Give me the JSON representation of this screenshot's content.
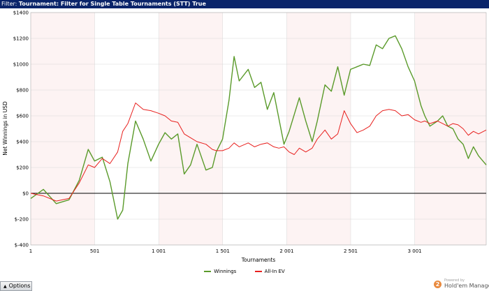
{
  "header": {
    "label": "Filter:",
    "value": "Tournament: Filter for Single Table Tournaments (STT) True"
  },
  "chart_data": {
    "type": "line",
    "xlabel": "Tournaments",
    "ylabel": "Net Winnings in USD",
    "xlim": [
      1,
      3560
    ],
    "ylim": [
      -400,
      1400
    ],
    "x_ticks": [
      1,
      501,
      1001,
      1501,
      2001,
      2501,
      3001
    ],
    "x_tick_labels": [
      "1",
      "501",
      "1 001",
      "1 501",
      "2 001",
      "2 501",
      "3 001"
    ],
    "y_ticks": [
      -400,
      -200,
      0,
      200,
      400,
      600,
      800,
      1000,
      1200,
      1400
    ],
    "y_tick_labels": [
      "$-400",
      "$-200",
      "$0",
      "$200",
      "$400",
      "$600",
      "$800",
      "$1000",
      "$1200",
      "$1400"
    ],
    "legend_position": "bottom-center",
    "series": [
      {
        "name": "Winnings",
        "color": "#5a9a2a",
        "x": [
          1,
          100,
          200,
          300,
          380,
          450,
          500,
          560,
          620,
          680,
          720,
          760,
          820,
          880,
          940,
          1000,
          1050,
          1100,
          1150,
          1200,
          1250,
          1300,
          1370,
          1420,
          1450,
          1500,
          1550,
          1590,
          1630,
          1700,
          1750,
          1800,
          1850,
          1900,
          1940,
          1980,
          2020,
          2060,
          2100,
          2150,
          2200,
          2240,
          2300,
          2350,
          2400,
          2450,
          2500,
          2550,
          2600,
          2650,
          2700,
          2750,
          2800,
          2850,
          2900,
          2950,
          3000,
          3050,
          3080,
          3120,
          3180,
          3220,
          3260,
          3300,
          3340,
          3380,
          3420,
          3460,
          3500,
          3560
        ],
        "y": [
          -40,
          30,
          -80,
          -50,
          100,
          340,
          250,
          280,
          90,
          -200,
          -130,
          230,
          560,
          420,
          250,
          380,
          470,
          420,
          460,
          150,
          220,
          380,
          180,
          200,
          320,
          420,
          720,
          1060,
          870,
          960,
          820,
          860,
          650,
          780,
          580,
          380,
          480,
          610,
          740,
          560,
          400,
          560,
          840,
          790,
          980,
          760,
          960,
          980,
          1000,
          990,
          1150,
          1120,
          1200,
          1220,
          1120,
          980,
          870,
          680,
          600,
          520,
          560,
          600,
          520,
          500,
          420,
          380,
          270,
          360,
          290,
          220
        ]
      },
      {
        "name": "All-In EV",
        "color": "#e8201e",
        "x": [
          1,
          100,
          200,
          300,
          380,
          450,
          500,
          560,
          620,
          680,
          720,
          760,
          820,
          880,
          940,
          1000,
          1050,
          1100,
          1150,
          1200,
          1250,
          1300,
          1370,
          1420,
          1450,
          1500,
          1550,
          1590,
          1630,
          1700,
          1750,
          1800,
          1850,
          1900,
          1940,
          1980,
          2020,
          2060,
          2100,
          2150,
          2200,
          2240,
          2300,
          2350,
          2400,
          2450,
          2500,
          2550,
          2600,
          2650,
          2700,
          2750,
          2800,
          2850,
          2900,
          2950,
          3000,
          3050,
          3080,
          3120,
          3180,
          3220,
          3260,
          3300,
          3340,
          3380,
          3420,
          3460,
          3500,
          3560
        ],
        "y": [
          0,
          -20,
          -60,
          -40,
          80,
          220,
          200,
          270,
          230,
          320,
          480,
          540,
          700,
          650,
          640,
          620,
          600,
          560,
          550,
          460,
          430,
          400,
          380,
          340,
          330,
          330,
          350,
          390,
          360,
          390,
          360,
          380,
          390,
          360,
          350,
          360,
          320,
          300,
          350,
          320,
          350,
          420,
          490,
          420,
          460,
          640,
          540,
          470,
          490,
          520,
          600,
          640,
          650,
          640,
          600,
          610,
          570,
          550,
          560,
          540,
          560,
          540,
          520,
          540,
          530,
          500,
          450,
          480,
          460,
          490
        ]
      }
    ]
  },
  "footer": {
    "options_label": "Options",
    "brand_powered": "Powered by",
    "brand_name": "Hold'em Manager",
    "brand_badge": "2"
  }
}
